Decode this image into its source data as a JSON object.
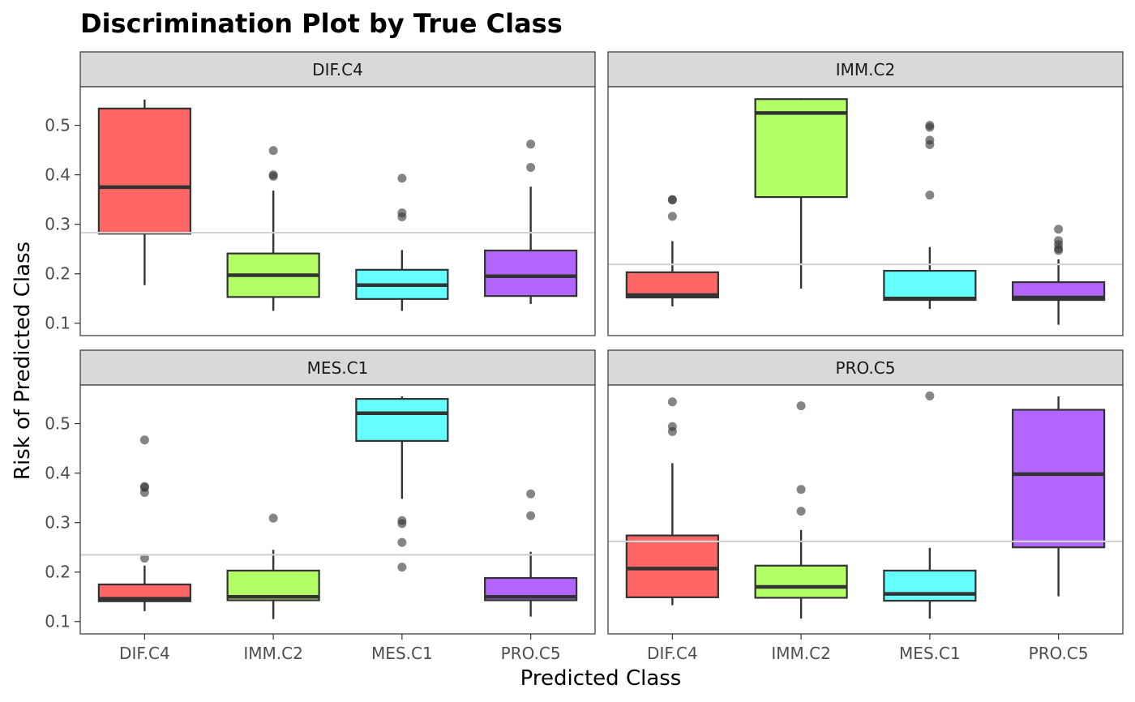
{
  "chart_data": {
    "type": "boxplot",
    "title": "Discrimination Plot by True Class",
    "xlabel": "Predicted Class",
    "ylabel": "Risk of Predicted Class",
    "categories": [
      "DIF.C4",
      "IMM.C2",
      "MES.C1",
      "PRO.C5"
    ],
    "colors": {
      "DIF.C4": "#FF6666",
      "IMM.C2": "#B3FF66",
      "MES.C1": "#66FFFF",
      "PRO.C5": "#B366FF"
    },
    "ylim": [
      0.075,
      0.578
    ],
    "yticks": [
      "0.1",
      "0.2",
      "0.3",
      "0.4",
      "0.5"
    ],
    "layout": "2x2 facet grid",
    "grid": false,
    "panels": [
      {
        "facet": "DIF.C4",
        "reference_line": 0.283,
        "boxes": [
          {
            "category": "DIF.C4",
            "min": 0.177,
            "q1": 0.281,
            "median": 0.375,
            "q3": 0.534,
            "max": 0.552,
            "outliers": []
          },
          {
            "category": "IMM.C2",
            "min": 0.125,
            "q1": 0.153,
            "median": 0.197,
            "q3": 0.241,
            "max": 0.368,
            "outliers": [
              0.449,
              0.4,
              0.397
            ]
          },
          {
            "category": "MES.C1",
            "min": 0.125,
            "q1": 0.149,
            "median": 0.177,
            "q3": 0.208,
            "max": 0.248,
            "outliers": [
              0.393,
              0.323,
              0.315
            ]
          },
          {
            "category": "PRO.C5",
            "min": 0.139,
            "q1": 0.155,
            "median": 0.195,
            "q3": 0.247,
            "max": 0.376,
            "outliers": [
              0.462,
              0.415
            ]
          }
        ]
      },
      {
        "facet": "IMM.C2",
        "reference_line": 0.219,
        "boxes": [
          {
            "category": "DIF.C4",
            "min": 0.134,
            "q1": 0.152,
            "median": 0.157,
            "q3": 0.203,
            "max": 0.266,
            "outliers": [
              0.35,
              0.349,
              0.316
            ]
          },
          {
            "category": "IMM.C2",
            "min": 0.17,
            "q1": 0.355,
            "median": 0.525,
            "q3": 0.553,
            "max": 0.555,
            "outliers": []
          },
          {
            "category": "MES.C1",
            "min": 0.129,
            "q1": 0.147,
            "median": 0.15,
            "q3": 0.206,
            "max": 0.254,
            "outliers": [
              0.5,
              0.496,
              0.47,
              0.461,
              0.359
            ]
          },
          {
            "category": "PRO.C5",
            "min": 0.097,
            "q1": 0.147,
            "median": 0.152,
            "q3": 0.183,
            "max": 0.229,
            "outliers": [
              0.29,
              0.267,
              0.259,
              0.251,
              0.247
            ]
          }
        ]
      },
      {
        "facet": "MES.C1",
        "reference_line": 0.235,
        "boxes": [
          {
            "category": "DIF.C4",
            "min": 0.121,
            "q1": 0.141,
            "median": 0.146,
            "q3": 0.175,
            "max": 0.213,
            "outliers": [
              0.467,
              0.373,
              0.371,
              0.361,
              0.228
            ]
          },
          {
            "category": "IMM.C2",
            "min": 0.105,
            "q1": 0.143,
            "median": 0.15,
            "q3": 0.203,
            "max": 0.245,
            "outliers": [
              0.309
            ]
          },
          {
            "category": "MES.C1",
            "min": 0.348,
            "q1": 0.465,
            "median": 0.521,
            "q3": 0.55,
            "max": 0.555,
            "outliers": [
              0.304,
              0.298,
              0.26,
              0.21
            ]
          },
          {
            "category": "PRO.C5",
            "min": 0.11,
            "q1": 0.143,
            "median": 0.15,
            "q3": 0.188,
            "max": 0.241,
            "outliers": [
              0.358,
              0.314
            ]
          }
        ]
      },
      {
        "facet": "PRO.C5",
        "reference_line": 0.262,
        "boxes": [
          {
            "category": "DIF.C4",
            "min": 0.133,
            "q1": 0.149,
            "median": 0.207,
            "q3": 0.274,
            "max": 0.42,
            "outliers": [
              0.544,
              0.494,
              0.484
            ]
          },
          {
            "category": "IMM.C2",
            "min": 0.106,
            "q1": 0.148,
            "median": 0.17,
            "q3": 0.213,
            "max": 0.285,
            "outliers": [
              0.536,
              0.367,
              0.323
            ]
          },
          {
            "category": "MES.C1",
            "min": 0.106,
            "q1": 0.142,
            "median": 0.156,
            "q3": 0.203,
            "max": 0.249,
            "outliers": [
              0.556
            ]
          },
          {
            "category": "PRO.C5",
            "min": 0.151,
            "q1": 0.25,
            "median": 0.398,
            "q3": 0.528,
            "max": 0.555,
            "outliers": []
          }
        ]
      }
    ]
  }
}
